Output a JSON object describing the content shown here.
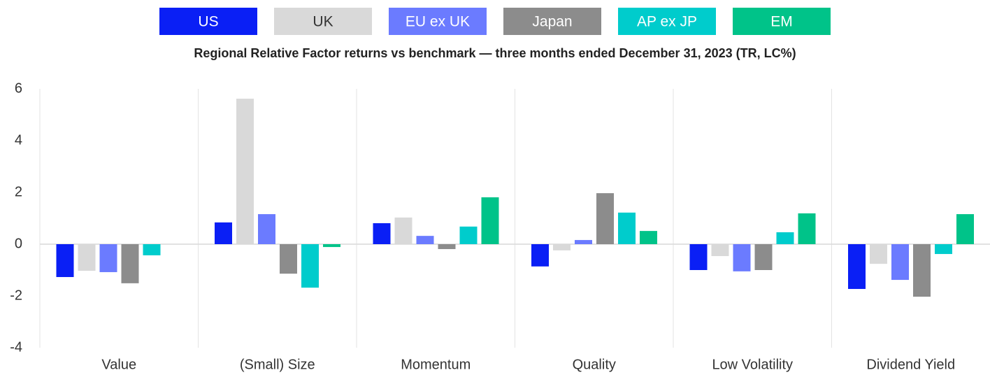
{
  "chart_data": {
    "type": "bar",
    "title": "Regional Relative Factor returns vs benchmark — three months ended December 31, 2023 (TR, LC%)",
    "categories": [
      "Value",
      "(Small) Size",
      "Momentum",
      "Quality",
      "Low Volatility",
      "Dividend Yield"
    ],
    "series": [
      {
        "name": "US",
        "color": "#0a1ff5",
        "values": [
          -1.27,
          0.84,
          0.81,
          -0.86,
          -1.0,
          -1.73
        ]
      },
      {
        "name": "UK",
        "color": "#d9d9d9",
        "values": [
          -1.03,
          5.62,
          1.03,
          -0.24,
          -0.46,
          -0.76
        ]
      },
      {
        "name": "EU ex UK",
        "color": "#6b7bff",
        "values": [
          -1.08,
          1.16,
          0.32,
          0.16,
          -1.05,
          -1.38
        ]
      },
      {
        "name": "Japan",
        "color": "#8c8c8c",
        "values": [
          -1.51,
          -1.14,
          -0.19,
          1.97,
          -1.0,
          -2.03
        ]
      },
      {
        "name": "AP ex JP",
        "color": "#00cccc",
        "values": [
          -0.43,
          -1.68,
          0.68,
          1.22,
          0.46,
          -0.38
        ]
      },
      {
        "name": "EM",
        "color": "#00c389",
        "values": [
          0,
          -0.11,
          1.81,
          0.51,
          1.19,
          1.16
        ]
      }
    ],
    "ylim": [
      -4,
      6
    ],
    "yticks": [
      -4,
      -2,
      0,
      2,
      4,
      6
    ],
    "grid": false,
    "legend": "top"
  }
}
